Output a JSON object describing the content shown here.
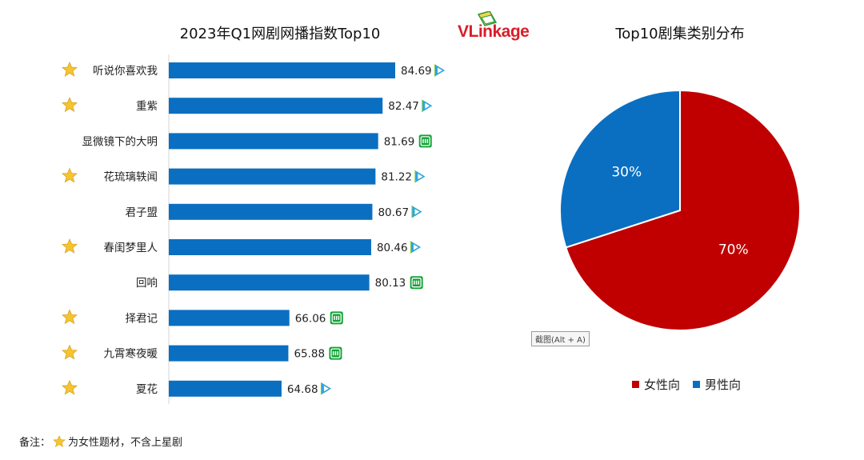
{
  "logo": {
    "text": "VLinkage"
  },
  "tooltip": "截图(Alt + A)",
  "footnote": {
    "prefix": "备注：",
    "text": "为女性题材，不含上星剧"
  },
  "colors": {
    "bar": "#0a6fc1",
    "female": "#c00000",
    "male": "#0a6fc1",
    "star": "#f5c430",
    "tencent_play": "#2fa4e7",
    "iqiyi": "#12a335"
  },
  "chart_data": [
    {
      "type": "bar",
      "orientation": "horizontal",
      "title": "2023年Q1网剧网播指数Top10",
      "categories": [
        "听说你喜欢我",
        "重紫",
        "显微镜下的大明",
        "花琉璃轶闻",
        "君子盟",
        "春闺梦里人",
        "回响",
        "择君记",
        "九霄寒夜暖",
        "夏花"
      ],
      "values": [
        84.69,
        82.47,
        81.69,
        81.22,
        80.67,
        80.46,
        80.13,
        66.06,
        65.88,
        64.68
      ],
      "female_theme": [
        true,
        true,
        false,
        true,
        false,
        true,
        false,
        true,
        true,
        true
      ],
      "platform_icon": [
        "play-icon",
        "play-icon",
        "iqiyi-icon",
        "play-icon",
        "play-icon",
        "play-icon",
        "iqiyi-icon",
        "iqiyi-icon",
        "iqiyi-icon",
        "play-icon"
      ]
    },
    {
      "type": "pie",
      "title": "Top10剧集类别分布",
      "slices": [
        {
          "label": "女性向",
          "value": 70,
          "display": "70%",
          "color": "#c00000"
        },
        {
          "label": "男性向",
          "value": 30,
          "display": "30%",
          "color": "#0a6fc1"
        }
      ],
      "legend_position": "bottom"
    }
  ]
}
